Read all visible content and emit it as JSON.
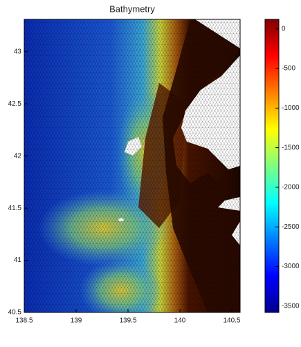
{
  "chart_data": {
    "type": "mesh",
    "title": "Bathymetry",
    "xlim": [
      138.5,
      140.58
    ],
    "xticks": [
      138.5,
      139,
      139.5,
      140,
      140.5
    ],
    "ylim": [
      40.5,
      43.31
    ],
    "yticks": [
      40.5,
      41,
      41.5,
      42,
      42.5,
      43
    ],
    "colorbar": {
      "colormap": "jet",
      "lim": [
        -3580,
        120
      ],
      "ticks": [
        0,
        -500,
        -1000,
        -1500,
        -2000,
        -2500,
        -3000,
        -3500
      ]
    }
  }
}
